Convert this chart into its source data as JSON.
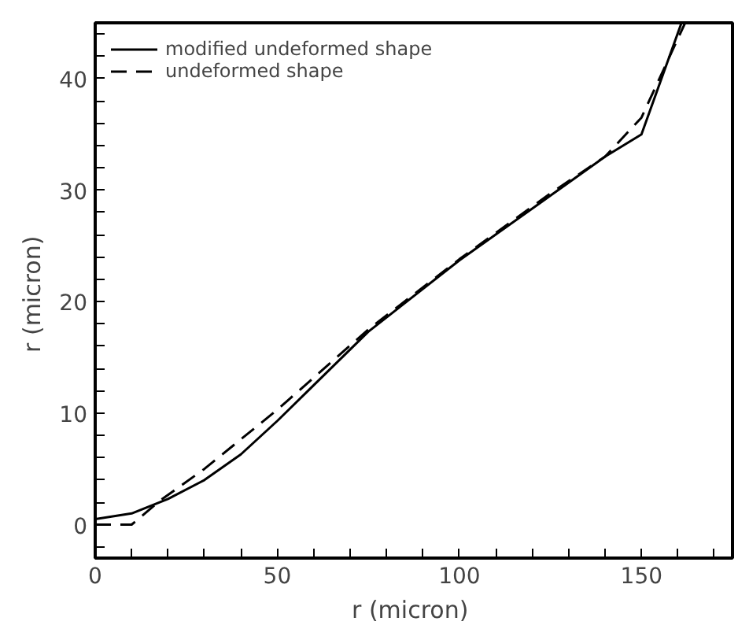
{
  "chart_data": {
    "type": "line",
    "xlabel": "r  (micron)",
    "ylabel": "r  (micron)",
    "xlim": [
      0,
      175
    ],
    "ylim": [
      -3,
      45
    ],
    "xticks": [
      0,
      {
        "value": 10,
        "label": null
      },
      {
        "value": 20,
        "label": null
      },
      {
        "value": 30,
        "label": null
      },
      {
        "value": 40,
        "label": null
      },
      50,
      {
        "value": 60,
        "label": null
      },
      {
        "value": 70,
        "label": null
      },
      {
        "value": 80,
        "label": null
      },
      {
        "value": 90,
        "label": null
      },
      100,
      {
        "value": 110,
        "label": null
      },
      {
        "value": 120,
        "label": null
      },
      {
        "value": 130,
        "label": null
      },
      {
        "value": 140,
        "label": null
      },
      150,
      {
        "value": 160,
        "label": null
      },
      {
        "value": 170,
        "label": null
      }
    ],
    "yticks": [
      {
        "value": -2,
        "label": null
      },
      0,
      {
        "value": 2,
        "label": null
      },
      {
        "value": 4,
        "label": null
      },
      {
        "value": 6,
        "label": null
      },
      {
        "value": 8,
        "label": null
      },
      10,
      {
        "value": 12,
        "label": null
      },
      {
        "value": 14,
        "label": null
      },
      {
        "value": 16,
        "label": null
      },
      {
        "value": 18,
        "label": null
      },
      20,
      {
        "value": 22,
        "label": null
      },
      {
        "value": 24,
        "label": null
      },
      {
        "value": 26,
        "label": null
      },
      {
        "value": 28,
        "label": null
      },
      30,
      {
        "value": 32,
        "label": null
      },
      {
        "value": 34,
        "label": null
      },
      {
        "value": 36,
        "label": null
      },
      {
        "value": 38,
        "label": null
      },
      40,
      {
        "value": 42,
        "label": null
      },
      {
        "value": 44,
        "label": null
      }
    ],
    "grid": false,
    "legend": "top left",
    "series": [
      {
        "name": "modified undeformed shape",
        "color": "#000000",
        "line_style": "solid",
        "x": [
          0,
          10,
          20,
          30,
          40,
          50,
          60,
          75,
          100,
          125,
          140,
          150,
          161
        ],
        "values": [
          0.5,
          1,
          2.3,
          4,
          6.3,
          9.3,
          12.5,
          17.3,
          23.7,
          29.5,
          33,
          35,
          45
        ]
      },
      {
        "name": "undeformed shape",
        "color": "#000000",
        "line_style": "dashed",
        "x": [
          0,
          10,
          18,
          30,
          50,
          75,
          100,
          125,
          140,
          150,
          162
        ],
        "values": [
          0,
          0,
          2.2,
          5,
          10.3,
          17.5,
          23.8,
          29.7,
          33,
          36.5,
          45
        ]
      }
    ]
  }
}
